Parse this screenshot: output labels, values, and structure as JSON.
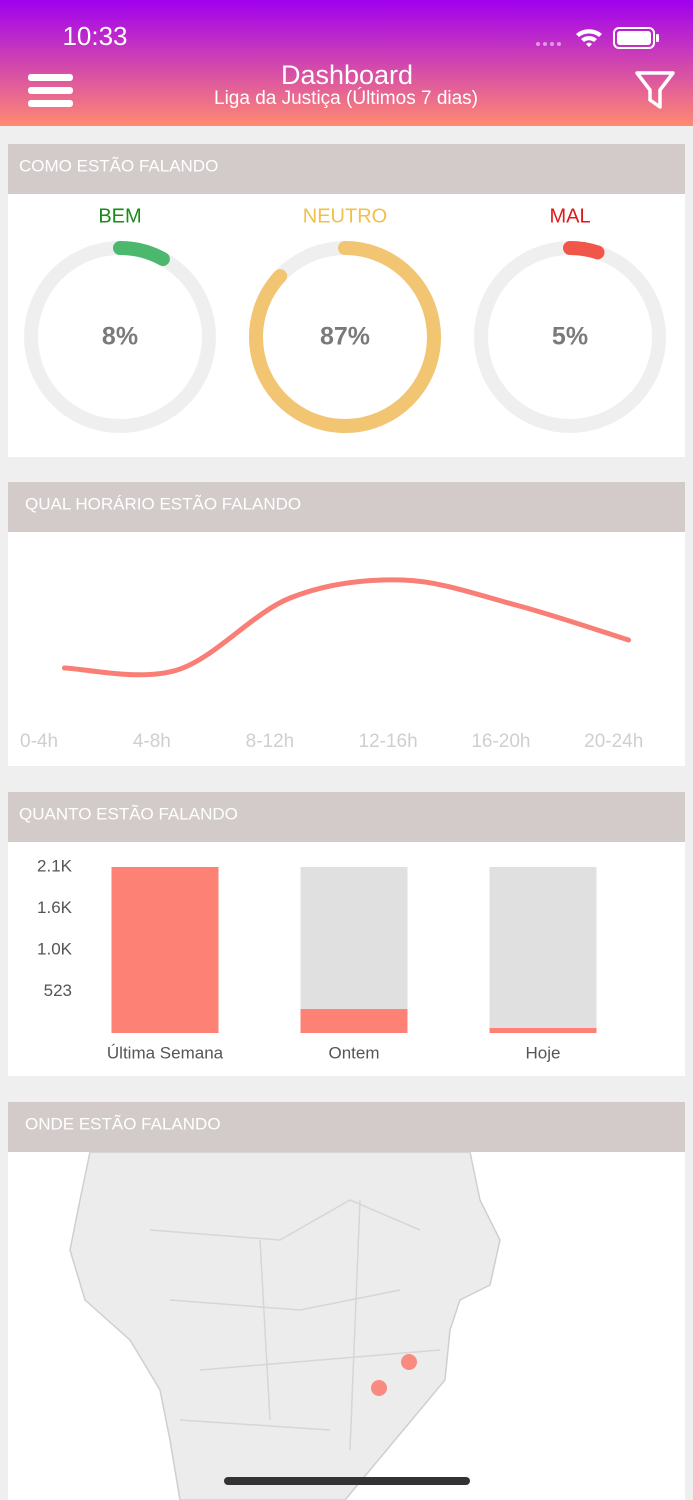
{
  "status_bar": {
    "time": "10:33"
  },
  "header": {
    "title": "Dashboard",
    "subtitle": "Liga da Justiça (Últimos 7 dias)"
  },
  "sentiment": {
    "type": "gauge",
    "title": "COMO ESTÃO FALANDO",
    "items": [
      {
        "label": "BEM",
        "value": 8,
        "value_label": "8%",
        "color": "#4cb86e",
        "label_color": "#1a8a1a"
      },
      {
        "label": "NEUTRO",
        "value": 87,
        "value_label": "87%",
        "color": "#f2c572",
        "label_color": "#f2c04a"
      },
      {
        "label": "MAL",
        "value": 5,
        "value_label": "5%",
        "color": "#f0574a",
        "label_color": "#e01818"
      }
    ]
  },
  "hourly": {
    "type": "line",
    "title": "QUAL HORÁRIO ESTÃO FALANDO",
    "categories": [
      "0-4h",
      "4-8h",
      "8-12h",
      "12-16h",
      "16-20h",
      "20-24h"
    ],
    "values": [
      52,
      50,
      122,
      140,
      115,
      80
    ],
    "color": "#f97f76",
    "ylim": [
      0,
      180
    ]
  },
  "volume": {
    "type": "bar",
    "title": "QUANTO ESTÃO FALANDO",
    "categories": [
      "Última Semana",
      "Ontem",
      "Hoje"
    ],
    "values": [
      2092,
      302,
      63
    ],
    "color": "#fe8176",
    "track_color": "#e0e0e0",
    "ylim": [
      0,
      2092
    ],
    "yticks": [
      {
        "value": 2092,
        "label": "2.1K"
      },
      {
        "value": 1569,
        "label": "1.6K"
      },
      {
        "value": 1046,
        "label": "1.0K"
      },
      523
    ]
  },
  "map": {
    "title": "ONDE ESTÃO FALANDO"
  }
}
